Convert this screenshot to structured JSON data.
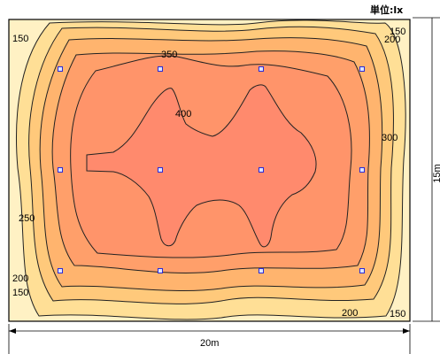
{
  "unit_label": "単位:lx",
  "width_label": "20m",
  "height_label": "15m",
  "contour_labels": {
    "l150_top_left": "150",
    "l150_top_right": "150",
    "l200_top_right": "200",
    "l350": "350",
    "l400": "400",
    "l300": "300",
    "l250": "250",
    "l200_bottom_left": "200",
    "l150_bottom_left": "150",
    "l200_bottom_right": "200",
    "l150_bottom_right": "150"
  },
  "fixtures": {
    "columns": 4,
    "rows": 3
  },
  "colors": {
    "band_lt150": "#fff1c4",
    "band_150_200": "#ffdf96",
    "band_200_250": "#ffc97b",
    "band_250_300": "#ffb46e",
    "band_300_350": "#ff9f6a",
    "band_350_400": "#ff946a",
    "band_gt400": "#ff8a6d",
    "fixture_stroke": "#2a2ad8"
  }
}
